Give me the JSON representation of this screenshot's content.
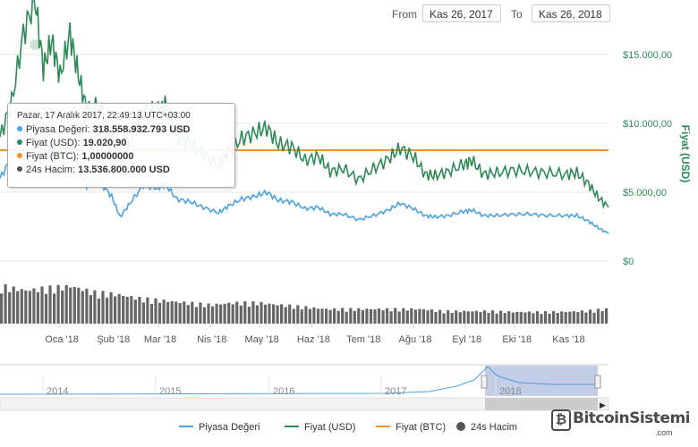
{
  "range": {
    "from_label": "From",
    "from_value": "Kas 26, 2017",
    "to_label": "To",
    "to_value": "Kas 26, 2018"
  },
  "tooltip": {
    "date": "Pazar, 17 Aralık 2017, 22:49:13 UTC+03:00",
    "rows": [
      {
        "label": "Piyasa Değeri:",
        "value": "318.558.932.793 USD",
        "color": "#4aa3df"
      },
      {
        "label": "Fiyat (USD):",
        "value": "19.020,90",
        "color": "#2e8b57"
      },
      {
        "label": "Fiyat (BTC):",
        "value": "1,00000000",
        "color": "#f0932b"
      },
      {
        "label": "24s Hacim:",
        "value": "13.536.800.000 USD",
        "color": "#555555"
      }
    ]
  },
  "chart_data": {
    "type": "line",
    "y_right_label": "Fiyat (USD)",
    "y_right_ticks": [
      "$15.000,00",
      "$10.000,00",
      "$5.000,00",
      "$0"
    ],
    "y_right_tick_values": [
      15000,
      10000,
      5000,
      0
    ],
    "ylim": [
      0,
      17000
    ],
    "x_tick_labels": [
      "Oca '18",
      "Şub '18",
      "Mar '18",
      "Nis '18",
      "May '18",
      "Haz '18",
      "Tem '18",
      "Ağu '18",
      "Eyl '18",
      "Eki '18",
      "Kas '18"
    ],
    "x_tick_dates": [
      "2018-01-01",
      "2018-02-01",
      "2018-03-01",
      "2018-04-01",
      "2018-05-01",
      "2018-06-01",
      "2018-07-01",
      "2018-08-01",
      "2018-09-01",
      "2018-10-01",
      "2018-11-01"
    ],
    "x_range": [
      "2017-11-26",
      "2018-11-26"
    ],
    "grid": true,
    "legend_position": "bottom",
    "series": [
      {
        "name": "Fiyat (USD)",
        "color": "#2e8b57",
        "x": [
          "2017-11-26",
          "2017-12-03",
          "2017-12-10",
          "2017-12-17",
          "2017-12-22",
          "2017-12-27",
          "2018-01-01",
          "2018-01-07",
          "2018-01-12",
          "2018-01-17",
          "2018-01-25",
          "2018-02-01",
          "2018-02-06",
          "2018-02-12",
          "2018-02-20",
          "2018-02-28",
          "2018-03-05",
          "2018-03-12",
          "2018-03-20",
          "2018-03-28",
          "2018-04-06",
          "2018-04-12",
          "2018-04-20",
          "2018-04-28",
          "2018-05-05",
          "2018-05-12",
          "2018-05-20",
          "2018-05-28",
          "2018-06-05",
          "2018-06-12",
          "2018-06-20",
          "2018-06-29",
          "2018-07-08",
          "2018-07-17",
          "2018-07-24",
          "2018-08-01",
          "2018-08-08",
          "2018-08-14",
          "2018-08-22",
          "2018-08-31",
          "2018-09-05",
          "2018-09-12",
          "2018-09-20",
          "2018-09-30",
          "2018-10-10",
          "2018-10-20",
          "2018-10-31",
          "2018-11-07",
          "2018-11-14",
          "2018-11-20",
          "2018-11-26"
        ],
        "values": [
          9000,
          11500,
          16500,
          19021,
          14000,
          16000,
          13400,
          16500,
          13500,
          11000,
          11200,
          9000,
          7000,
          8600,
          11000,
          10800,
          11400,
          9000,
          8500,
          7800,
          6900,
          7900,
          8900,
          9300,
          9700,
          8500,
          8300,
          7300,
          7600,
          6500,
          6700,
          5900,
          6700,
          7400,
          8200,
          7600,
          6300,
          6200,
          6500,
          7000,
          7300,
          6300,
          6400,
          6600,
          6500,
          6400,
          6300,
          6400,
          5600,
          4600,
          3900
        ]
      },
      {
        "name": "Piyasa Değeri",
        "color": "#4aa3df",
        "x": [
          "2017-11-26",
          "2017-12-03",
          "2017-12-10",
          "2017-12-17",
          "2017-12-22",
          "2017-12-27",
          "2018-01-01",
          "2018-01-07",
          "2018-01-12",
          "2018-01-17",
          "2018-01-25",
          "2018-02-01",
          "2018-02-06",
          "2018-02-12",
          "2018-02-20",
          "2018-02-28",
          "2018-03-05",
          "2018-03-12",
          "2018-03-20",
          "2018-03-28",
          "2018-04-06",
          "2018-04-12",
          "2018-04-20",
          "2018-04-28",
          "2018-05-05",
          "2018-05-12",
          "2018-05-20",
          "2018-05-28",
          "2018-06-05",
          "2018-06-12",
          "2018-06-20",
          "2018-06-29",
          "2018-07-08",
          "2018-07-17",
          "2018-07-24",
          "2018-08-01",
          "2018-08-08",
          "2018-08-14",
          "2018-08-22",
          "2018-08-31",
          "2018-09-05",
          "2018-09-12",
          "2018-09-20",
          "2018-09-30",
          "2018-10-10",
          "2018-10-20",
          "2018-10-31",
          "2018-11-07",
          "2018-11-14",
          "2018-11-20",
          "2018-11-26"
        ],
        "values": [
          6000,
          7500,
          9800,
          9600,
          7600,
          8300,
          7500,
          8600,
          6800,
          5500,
          5700,
          4700,
          3200,
          4200,
          5500,
          5300,
          5600,
          4500,
          4300,
          3900,
          3500,
          4000,
          4500,
          4700,
          5000,
          4400,
          4300,
          3800,
          3900,
          3400,
          3400,
          3000,
          3300,
          3700,
          4200,
          3800,
          3300,
          3200,
          3300,
          3600,
          3700,
          3300,
          3300,
          3400,
          3400,
          3300,
          3300,
          3300,
          2900,
          2400,
          2000
        ]
      },
      {
        "name": "Fiyat (BTC)",
        "color": "#f0932b",
        "x": [
          "2017-11-26",
          "2018-11-26"
        ],
        "values": [
          1,
          1
        ],
        "value_note_visible": "1,00000000"
      },
      {
        "name": "24s Hacim",
        "color": "#555555",
        "x": [
          "2017-11-26",
          "2017-12-10",
          "2017-12-24",
          "2018-01-07",
          "2018-01-21",
          "2018-02-04",
          "2018-02-18",
          "2018-03-04",
          "2018-03-18",
          "2018-04-01",
          "2018-04-15",
          "2018-04-29",
          "2018-05-13",
          "2018-05-27",
          "2018-06-10",
          "2018-06-24",
          "2018-07-08",
          "2018-07-22",
          "2018-08-05",
          "2018-08-19",
          "2018-09-02",
          "2018-09-16",
          "2018-09-30",
          "2018-10-14",
          "2018-10-28",
          "2018-11-11",
          "2018-11-26"
        ],
        "values": [
          0.9,
          0.8,
          0.85,
          0.9,
          0.75,
          0.7,
          0.6,
          0.55,
          0.5,
          0.45,
          0.5,
          0.5,
          0.45,
          0.4,
          0.35,
          0.35,
          0.35,
          0.35,
          0.35,
          0.3,
          0.3,
          0.3,
          0.28,
          0.28,
          0.28,
          0.3,
          0.35
        ]
      }
    ],
    "navigator": {
      "labels": [
        "2014",
        "2015",
        "2016",
        "2017",
        "2018"
      ]
    }
  },
  "legend": [
    {
      "name": "Piyasa Değeri",
      "color": "#4aa3df",
      "kind": "line"
    },
    {
      "name": "Fiyat (USD)",
      "color": "#2e8b57",
      "kind": "line"
    },
    {
      "name": "Fiyat (BTC)",
      "color": "#f0932b",
      "kind": "line"
    },
    {
      "name": "24s Hacim",
      "color": "#555555",
      "kind": "dot"
    }
  ],
  "watermark": {
    "text": "BitcoinSistemi",
    "sub": ".com",
    "icon": "bitcoin-b-icon"
  }
}
